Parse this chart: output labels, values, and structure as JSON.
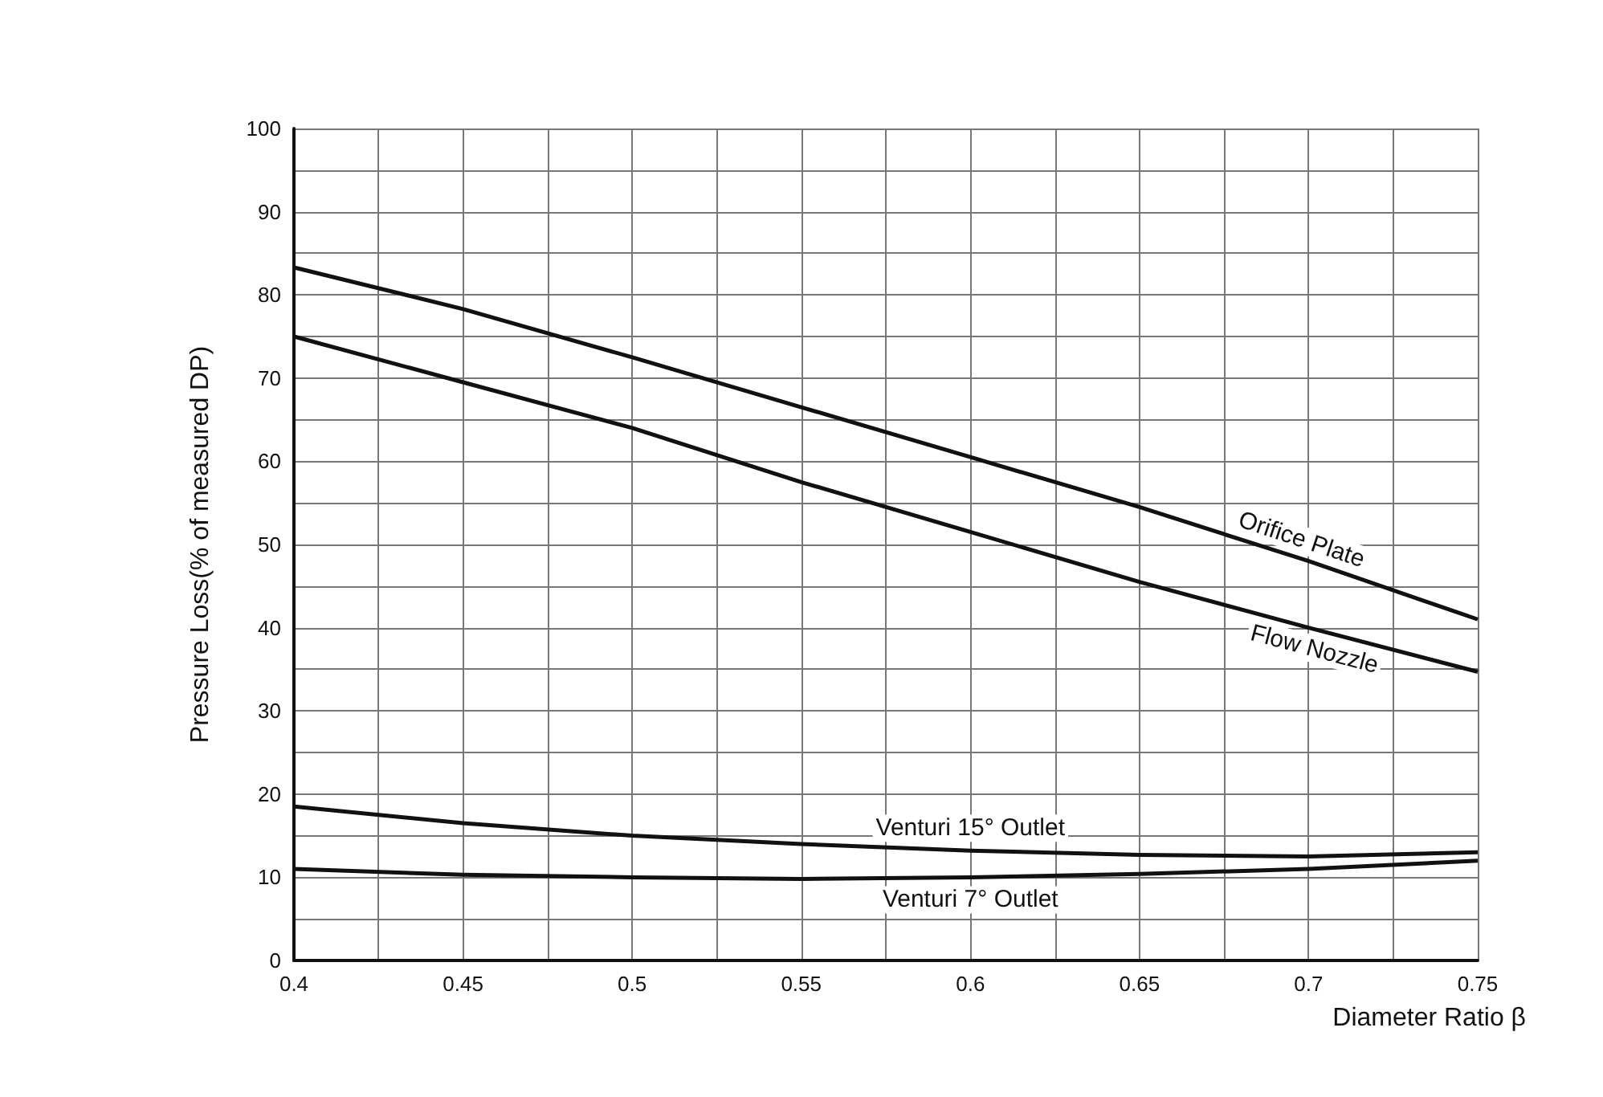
{
  "chart_data": {
    "type": "line",
    "xlabel": "Diameter Ratio β",
    "ylabel": "Pressure Loss(% of measured DP)",
    "x": [
      0.4,
      0.45,
      0.5,
      0.55,
      0.6,
      0.65,
      0.7,
      0.75
    ],
    "series": [
      {
        "name": "Orifice Plate",
        "color": "#111111",
        "values": [
          83.3,
          78.3,
          72.5,
          66.5,
          60.5,
          54.5,
          48,
          41
        ]
      },
      {
        "name": "Flow Nozzle",
        "color": "#111111",
        "values": [
          75,
          69.5,
          64,
          57.5,
          51.5,
          45.5,
          40,
          34.7
        ]
      },
      {
        "name": "Venturi 15° Outlet",
        "color": "#111111",
        "values": [
          18.5,
          16.5,
          15,
          14,
          13.2,
          12.7,
          12.5,
          13
        ]
      },
      {
        "name": "Venturi 7° Outlet",
        "color": "#111111",
        "values": [
          11,
          10.3,
          10,
          9.8,
          10,
          10.4,
          11,
          12
        ]
      }
    ],
    "xlim": [
      0.4,
      0.75
    ],
    "xticks": [
      0.4,
      {
        "value": 0.425,
        "label": null
      },
      0.45,
      {
        "value": 0.475,
        "label": null
      },
      0.5,
      {
        "value": 0.525,
        "label": null
      },
      0.55,
      {
        "value": 0.575,
        "label": null
      },
      0.6,
      {
        "value": 0.625,
        "label": null
      },
      0.65,
      {
        "value": 0.675,
        "label": null
      },
      0.7,
      {
        "value": 0.725,
        "label": null
      },
      0.75
    ],
    "ylim": [
      0,
      100
    ],
    "yticks": [
      0,
      {
        "value": 5,
        "label": null
      },
      10,
      {
        "value": 15,
        "label": null
      },
      20,
      {
        "value": 25,
        "label": null
      },
      30,
      {
        "value": 35,
        "label": null
      },
      40,
      {
        "value": 45,
        "label": null
      },
      50,
      {
        "value": 55,
        "label": null
      },
      60,
      {
        "value": 65,
        "label": null
      },
      70,
      {
        "value": 75,
        "label": null
      },
      80,
      {
        "value": 85,
        "label": null
      },
      90,
      {
        "value": 95,
        "label": null
      },
      100
    ],
    "grid": true,
    "marker": "none",
    "line_style": "solid",
    "legend": false
  }
}
